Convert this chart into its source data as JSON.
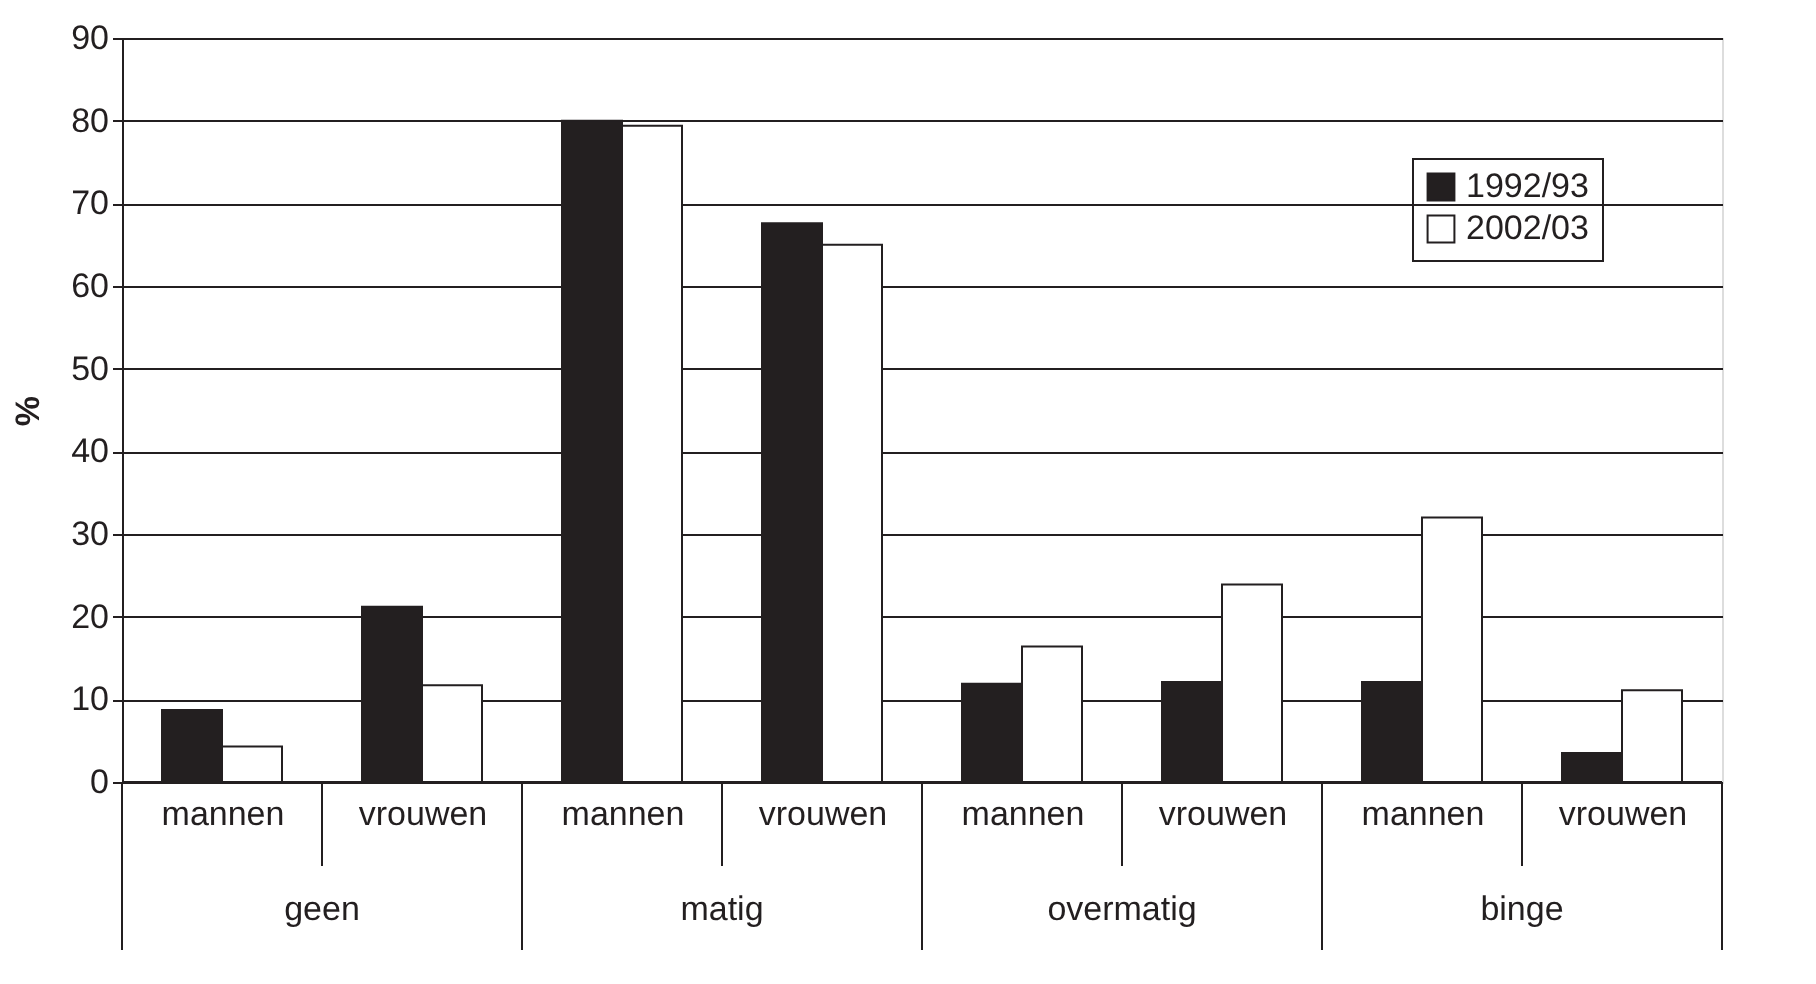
{
  "chart_data": {
    "type": "bar",
    "ylabel": "%",
    "categories": [
      "mannen",
      "vrouwen",
      "mannen",
      "vrouwen",
      "mannen",
      "vrouwen",
      "mannen",
      "vrouwen"
    ],
    "annotations": [
      "geen",
      "matig",
      "overmatig",
      "binge"
    ],
    "series": [
      {
        "name": "1992/93",
        "color": "#231f20",
        "values": [
          8.7,
          21.2,
          80,
          67.6,
          11.9,
          12.1,
          12.1,
          3.5
        ]
      },
      {
        "name": "2002/03",
        "color": "#ffffff",
        "values": [
          4.3,
          11.7,
          79.4,
          65,
          16.4,
          23.9,
          32,
          11.1
        ]
      }
    ],
    "ylim": [
      0,
      90
    ],
    "yticks": [
      0,
      10,
      20,
      30,
      40,
      50,
      60,
      70,
      80,
      90
    ],
    "grid": "y",
    "legend": "top right"
  }
}
